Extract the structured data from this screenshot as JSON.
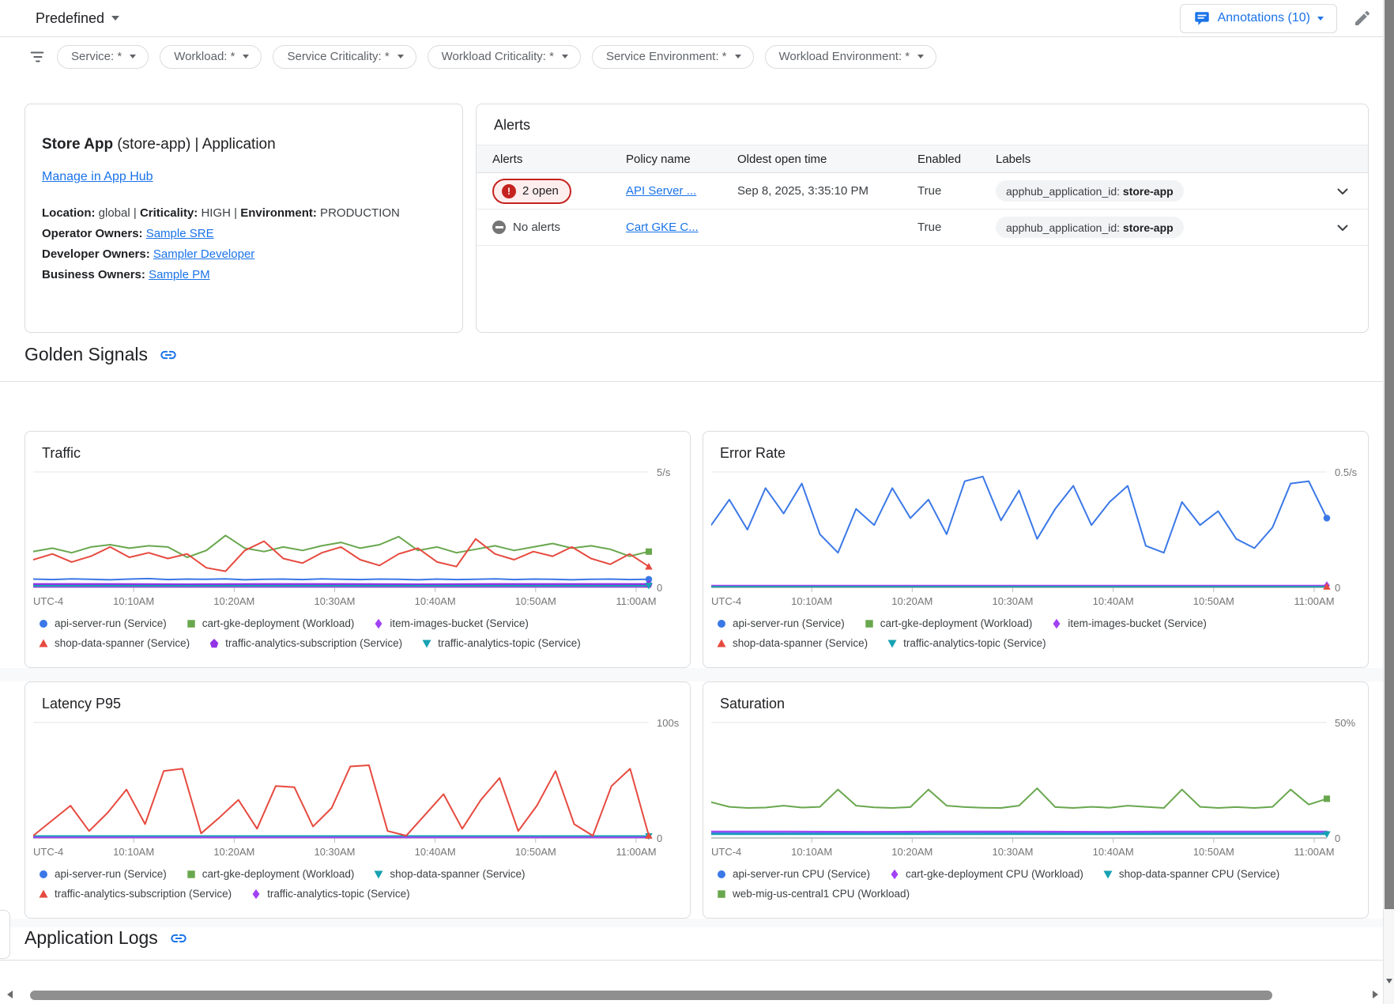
{
  "topbar": {
    "view_selector": "Predefined",
    "annotations_label": "Annotations (10)"
  },
  "filters": {
    "chips": [
      {
        "label": "Service: *"
      },
      {
        "label": "Workload: *"
      },
      {
        "label": "Service Criticality: *"
      },
      {
        "label": "Workload Criticality: *"
      },
      {
        "label": "Service Environment: *"
      },
      {
        "label": "Workload Environment: *"
      }
    ]
  },
  "app_card": {
    "title_bold": "Store App",
    "title_rest": " (store-app) | Application",
    "manage_link": "Manage in App Hub",
    "meta": [
      {
        "label": "Location:",
        "value": "global"
      },
      {
        "label": "Criticality:",
        "value": "HIGH"
      },
      {
        "label": "Environment:",
        "value": "PRODUCTION"
      }
    ],
    "meta_separator": " | ",
    "owners": [
      {
        "label": "Operator Owners:",
        "link": "Sample SRE"
      },
      {
        "label": "Developer Owners:",
        "link": "Sampler Developer"
      },
      {
        "label": "Business Owners:",
        "link": "Sample PM"
      }
    ]
  },
  "alerts": {
    "title": "Alerts",
    "columns": [
      "Alerts",
      "Policy name",
      "Oldest open time",
      "Enabled",
      "Labels"
    ],
    "rows": [
      {
        "status": "open",
        "status_label": "2 open",
        "policy": "API Server ...",
        "oldest": "Sep 8, 2025, 3:35:10 PM",
        "enabled": "True",
        "label_key": "apphub_application_id: ",
        "label_value": "store-app"
      },
      {
        "status": "none",
        "status_label": "No alerts",
        "policy": "Cart GKE C...",
        "oldest": "",
        "enabled": "True",
        "label_key": "apphub_application_id: ",
        "label_value": "store-app"
      }
    ]
  },
  "sections": {
    "golden_signals": "Golden Signals",
    "application_logs": "Application Logs"
  },
  "icons": {
    "error_glyph": "!"
  },
  "colors": {
    "accent": "#1a73e8",
    "alert_red": "#c5221f",
    "series_blue": "#3b78e7",
    "series_green": "#69a74e",
    "series_red": "#e64a3f",
    "series_purple": "#a142f4",
    "series_violet": "#9334e6",
    "series_teal": "#16a2b3"
  },
  "chart_data": [
    {
      "type": "line",
      "title": "Traffic",
      "unit_top": "5/s",
      "y_base_label": "0",
      "ylim": [
        0,
        5
      ],
      "grid": true,
      "legend_position": "bottom",
      "x_ticks": [
        "UTC-4",
        "10:10AM",
        "10:20AM",
        "10:30AM",
        "10:40AM",
        "10:50AM",
        "11:00AM"
      ],
      "series": [
        {
          "name": "api-server-run (Service)",
          "color": "#3b78e7",
          "marker": "circle",
          "end_marker": "circle",
          "values": [
            0.36,
            0.34,
            0.37,
            0.35,
            0.33,
            0.36,
            0.38,
            0.34,
            0.36,
            0.35,
            0.37,
            0.33,
            0.35,
            0.36,
            0.34,
            0.37,
            0.35,
            0.34,
            0.36,
            0.35,
            0.33,
            0.36,
            0.34,
            0.35,
            0.37,
            0.34,
            0.36,
            0.35,
            0.33,
            0.35,
            0.36,
            0.34,
            0.35
          ]
        },
        {
          "name": "cart-gke-deployment (Workload)",
          "color": "#69a74e",
          "marker": "square",
          "end_marker": "square",
          "values": [
            1.55,
            1.7,
            1.5,
            1.75,
            1.85,
            1.7,
            1.8,
            1.75,
            1.3,
            1.6,
            2.25,
            1.7,
            1.55,
            1.75,
            1.6,
            1.8,
            1.95,
            1.7,
            1.85,
            2.2,
            1.6,
            1.75,
            1.5,
            1.65,
            1.8,
            1.6,
            1.75,
            1.9,
            1.7,
            1.8,
            1.65,
            1.35,
            1.55
          ]
        },
        {
          "name": "item-images-bucket (Service)",
          "color": "#a142f4",
          "marker": "diamond",
          "end_marker": null,
          "values": [
            0.03,
            0.03,
            0.03,
            0.03,
            0.03,
            0.03,
            0.03,
            0.03,
            0.03
          ]
        },
        {
          "name": "shop-data-spanner (Service)",
          "color": "#e64a3f",
          "marker": "triangle-up",
          "end_marker": "triangle-up",
          "values": [
            1.2,
            1.45,
            1.1,
            1.35,
            1.75,
            1.3,
            1.5,
            1.25,
            1.45,
            0.85,
            0.7,
            1.6,
            2.0,
            1.25,
            1.05,
            1.5,
            1.75,
            1.2,
            0.95,
            1.45,
            1.7,
            1.1,
            0.9,
            2.1,
            1.45,
            1.2,
            1.55,
            1.35,
            1.75,
            1.25,
            1.0,
            1.45,
            0.9
          ]
        },
        {
          "name": "traffic-analytics-subscription (Service)",
          "color": "#9334e6",
          "marker": "pentagon",
          "end_marker": "pentagon",
          "width": 2.5,
          "values": [
            0.14,
            0.14,
            0.13,
            0.14,
            0.14,
            0.13,
            0.14,
            0.14,
            0.14
          ]
        },
        {
          "name": "traffic-analytics-topic (Service)",
          "color": "#16a2b3",
          "marker": "triangle-down",
          "end_marker": "triangle-down",
          "values": [
            0.07,
            0.07,
            0.07,
            0.07,
            0.07,
            0.07,
            0.07,
            0.07,
            0.07
          ]
        }
      ]
    },
    {
      "type": "line",
      "title": "Error Rate",
      "unit_top": "0.5/s",
      "y_base_label": "0",
      "ylim": [
        0,
        0.5
      ],
      "grid": true,
      "legend_position": "bottom",
      "x_ticks": [
        "UTC-4",
        "10:10AM",
        "10:20AM",
        "10:30AM",
        "10:40AM",
        "10:50AM",
        "11:00AM"
      ],
      "series": [
        {
          "name": "api-server-run (Service)",
          "color": "#3b78e7",
          "marker": "circle",
          "end_marker": "circle",
          "values": [
            0.27,
            0.38,
            0.25,
            0.43,
            0.32,
            0.45,
            0.23,
            0.15,
            0.34,
            0.27,
            0.43,
            0.3,
            0.38,
            0.23,
            0.46,
            0.48,
            0.29,
            0.42,
            0.21,
            0.34,
            0.44,
            0.27,
            0.37,
            0.44,
            0.18,
            0.15,
            0.37,
            0.27,
            0.33,
            0.21,
            0.17,
            0.26,
            0.45,
            0.46,
            0.3
          ]
        },
        {
          "name": "cart-gke-deployment (Workload)",
          "color": "#69a74e",
          "marker": "square",
          "end_marker": null,
          "values": [
            0.005,
            0.005,
            0.005,
            0.005,
            0.005,
            0.005,
            0.005,
            0.005,
            0.005
          ]
        },
        {
          "name": "item-images-bucket (Service)",
          "color": "#a142f4",
          "marker": "diamond",
          "end_marker": "diamond",
          "values": [
            0.008,
            0.008,
            0.008,
            0.008,
            0.008,
            0.008,
            0.008,
            0.008,
            0.008
          ]
        },
        {
          "name": "shop-data-spanner (Service)",
          "color": "#e64a3f",
          "marker": "triangle-up",
          "end_marker": "triangle-up",
          "values": [
            0.003,
            0.003,
            0.003,
            0.003,
            0.003,
            0.003,
            0.003,
            0.003,
            0.003
          ]
        },
        {
          "name": "traffic-analytics-topic (Service)",
          "color": "#16a2b3",
          "marker": "triangle-down",
          "end_marker": null,
          "values": [
            0.003,
            0.003,
            0.003,
            0.003,
            0.003,
            0.003,
            0.003,
            0.003,
            0.003
          ]
        }
      ]
    },
    {
      "type": "line",
      "title": "Latency P95",
      "unit_top": "100s",
      "y_base_label": "0",
      "ylim": [
        0,
        100
      ],
      "grid": true,
      "legend_position": "bottom",
      "x_ticks": [
        "UTC-4",
        "10:10AM",
        "10:20AM",
        "10:30AM",
        "10:40AM",
        "10:50AM",
        "11:00AM"
      ],
      "series": [
        {
          "name": "api-server-run (Service)",
          "color": "#3b78e7",
          "marker": "circle",
          "end_marker": null,
          "values": [
            0.8,
            0.8,
            0.8,
            0.8,
            0.8,
            0.8,
            0.8,
            0.8,
            0.8
          ]
        },
        {
          "name": "cart-gke-deployment (Workload)",
          "color": "#69a74e",
          "marker": "square",
          "end_marker": null,
          "values": [
            1.0,
            1.0,
            1.0,
            1.0,
            1.0,
            1.0,
            1.0,
            1.0,
            1.0
          ]
        },
        {
          "name": "shop-data-spanner (Service)",
          "color": "#16a2b3",
          "marker": "triangle-down",
          "end_marker": "triangle-down",
          "width": 2.5,
          "values": [
            1.5,
            1.5,
            1.5,
            1.5,
            1.5,
            1.5,
            1.5,
            1.5,
            1.5
          ]
        },
        {
          "name": "traffic-analytics-subscription (Service)",
          "color": "#e64a3f",
          "marker": "triangle-up",
          "end_marker": "triangle-up",
          "values": [
            2,
            15,
            28,
            6,
            22,
            42,
            12,
            58,
            60,
            4,
            18,
            33,
            8,
            45,
            44,
            10,
            26,
            62,
            63,
            6,
            2,
            20,
            38,
            8,
            33,
            52,
            6,
            28,
            58,
            12,
            2,
            45,
            60,
            2
          ]
        },
        {
          "name": "traffic-analytics-topic (Service)",
          "color": "#a142f4",
          "marker": "diamond",
          "end_marker": null,
          "values": [
            0.5,
            0.5,
            0.5,
            0.5,
            0.5,
            0.5,
            0.5,
            0.5,
            0.5
          ]
        }
      ]
    },
    {
      "type": "line",
      "title": "Saturation",
      "unit_top": "50%",
      "y_base_label": "0",
      "ylim": [
        0,
        50
      ],
      "grid": true,
      "legend_position": "bottom",
      "x_ticks": [
        "UTC-4",
        "10:10AM",
        "10:20AM",
        "10:30AM",
        "10:40AM",
        "10:50AM",
        "11:00AM"
      ],
      "series": [
        {
          "name": "api-server-run CPU (Service)",
          "color": "#3b78e7",
          "marker": "circle",
          "end_marker": null,
          "values": [
            2.2,
            2.1,
            2.2,
            2.3,
            2.2,
            2.1,
            2.2,
            2.2,
            2.2
          ]
        },
        {
          "name": "cart-gke-deployment CPU (Workload)",
          "color": "#a142f4",
          "marker": "diamond",
          "end_marker": null,
          "values": [
            2.8,
            2.8,
            2.7,
            2.8,
            2.8,
            2.7,
            2.8,
            2.8,
            2.8
          ]
        },
        {
          "name": "shop-data-spanner CPU (Service)",
          "color": "#16a2b3",
          "marker": "triangle-down",
          "end_marker": "triangle-down",
          "values": [
            1.6,
            1.6,
            1.6,
            1.6,
            1.6,
            1.6,
            1.6,
            1.6,
            1.6
          ]
        },
        {
          "name": "web-mig-us-central1 CPU (Workload)",
          "color": "#69a74e",
          "marker": "square",
          "end_marker": "square",
          "values": [
            15.5,
            13.5,
            13,
            13.2,
            14,
            13.2,
            13.5,
            21,
            14,
            13.3,
            13,
            13.4,
            21,
            14,
            13.4,
            13.1,
            13,
            14,
            21.5,
            13.4,
            13,
            13.5,
            13.1,
            14,
            13.5,
            13,
            21,
            13.5,
            13,
            13.4,
            13,
            13.5,
            21,
            14.5,
            17
          ]
        }
      ]
    }
  ]
}
